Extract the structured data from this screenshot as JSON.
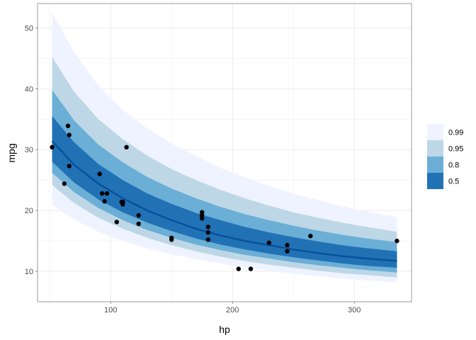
{
  "chart_data": {
    "type": "line",
    "title": "",
    "xlabel": "hp",
    "ylabel": "mpg",
    "xlim": [
      40,
      347
    ],
    "ylim": [
      5,
      54
    ],
    "x_ticks": [
      100,
      200,
      300
    ],
    "y_ticks": [
      10,
      20,
      30,
      40,
      50
    ],
    "grid": true,
    "legend_position": "right",
    "legend": [
      {
        "label": "0.99",
        "color": "#eff3ff"
      },
      {
        "label": "0.95",
        "color": "#bdd7e7"
      },
      {
        "label": "0.8",
        "color": "#6baed6"
      },
      {
        "label": "0.5",
        "color": "#2171b5"
      }
    ],
    "line_color": "#08519c",
    "point_color": "#000000",
    "x_grid": [
      52,
      70,
      90,
      110,
      130,
      150,
      170,
      190,
      210,
      230,
      250,
      270,
      290,
      310,
      335
    ],
    "median": [
      31.4,
      27.5,
      24.4,
      22.0,
      20.0,
      18.4,
      17.0,
      15.9,
      15.0,
      14.3,
      13.6,
      13.0,
      12.5,
      12.1,
      11.7
    ],
    "bands": [
      {
        "level": "0.99",
        "lower": [
          21.0,
          18.5,
          16.5,
          15.0,
          13.8,
          12.8,
          12.0,
          11.3,
          10.6,
          10.1,
          9.6,
          9.2,
          8.8,
          8.5,
          8.2
        ],
        "upper": [
          52.5,
          46.0,
          40.5,
          36.5,
          33.5,
          31.0,
          29.0,
          27.0,
          25.5,
          24.0,
          22.8,
          21.7,
          20.7,
          19.8,
          18.9
        ]
      },
      {
        "level": "0.95",
        "lower": [
          24.2,
          21.2,
          18.8,
          17.0,
          15.5,
          14.3,
          13.3,
          12.4,
          11.7,
          11.1,
          10.6,
          10.1,
          9.7,
          9.4,
          9.0
        ],
        "upper": [
          45.2,
          39.5,
          35.0,
          31.7,
          29.0,
          26.8,
          25.0,
          23.4,
          22.0,
          20.8,
          19.7,
          18.8,
          18.0,
          17.3,
          16.5
        ]
      },
      {
        "level": "0.8",
        "lower": [
          26.2,
          23.0,
          20.4,
          18.4,
          16.8,
          15.5,
          14.4,
          13.5,
          12.7,
          12.1,
          11.5,
          11.0,
          10.6,
          10.2,
          9.8
        ],
        "upper": [
          39.8,
          34.8,
          30.8,
          27.9,
          25.5,
          23.6,
          22.0,
          20.6,
          19.4,
          18.4,
          17.5,
          16.7,
          16.0,
          15.4,
          14.8
        ]
      },
      {
        "level": "0.5",
        "lower": [
          28.0,
          24.6,
          21.8,
          19.7,
          18.0,
          16.6,
          15.4,
          14.4,
          13.6,
          12.9,
          12.3,
          11.8,
          11.3,
          10.9,
          10.6
        ],
        "upper": [
          35.5,
          31.2,
          27.6,
          25.0,
          22.8,
          21.1,
          19.6,
          18.4,
          17.3,
          16.4,
          15.6,
          14.9,
          14.3,
          13.8,
          13.3
        ]
      }
    ],
    "points": [
      [
        52,
        30.4
      ],
      [
        62,
        24.4
      ],
      [
        65,
        33.9
      ],
      [
        66,
        32.4
      ],
      [
        66,
        27.3
      ],
      [
        91,
        26.0
      ],
      [
        93,
        22.8
      ],
      [
        97,
        22.8
      ],
      [
        95,
        21.5
      ],
      [
        105,
        18.1
      ],
      [
        109,
        21.4
      ],
      [
        110,
        21.0
      ],
      [
        110,
        21.4
      ],
      [
        113,
        30.4
      ],
      [
        123,
        19.2
      ],
      [
        123,
        17.8
      ],
      [
        150,
        15.5
      ],
      [
        150,
        15.2
      ],
      [
        175,
        19.7
      ],
      [
        175,
        18.7
      ],
      [
        175,
        19.2
      ],
      [
        180,
        16.4
      ],
      [
        180,
        17.3
      ],
      [
        180,
        15.2
      ],
      [
        205,
        10.4
      ],
      [
        215,
        10.4
      ],
      [
        230,
        14.7
      ],
      [
        245,
        14.3
      ],
      [
        245,
        13.3
      ],
      [
        264,
        15.8
      ],
      [
        335,
        15.0
      ]
    ]
  }
}
